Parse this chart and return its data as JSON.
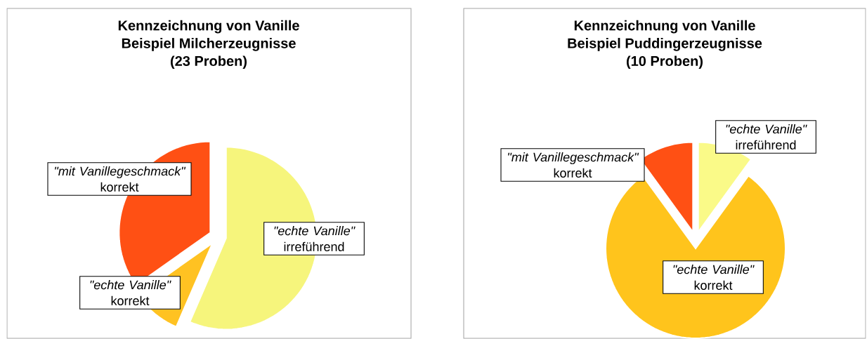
{
  "chart_data": [
    {
      "type": "pie",
      "title": "Kennzeichnung von Vanille",
      "subtitle": "Beispiel Milcherzeugnisse",
      "annotations": [
        "(23 Proben)"
      ],
      "categories": [
        "*\"mit Vanillegeschmack\"* korrekt",
        "*\"echte Vanille\"* korrekt",
        "*\"echte Vanille\"* irreführend"
      ],
      "values": [
        34.8,
        8.7,
        56.5
      ],
      "colors": [
        "#ff5014",
        "#ffc222",
        "#f6f57c"
      ]
    },
    {
      "type": "pie",
      "title": "Kennzeichnung von Vanille",
      "subtitle": "Beispiel Puddingerzeugnisse",
      "annotations": [
        "(10 Proben)"
      ],
      "categories": [
        "*\"mit Vanillegeschmack\"* korrekt",
        "*\"echte Vanille\"* korrekt",
        "*\"echte Vanille\"* irreführend"
      ],
      "values": [
        10,
        80,
        10
      ],
      "colors": [
        "#ff5014",
        "#ffc41c",
        "#fafa88"
      ]
    }
  ]
}
